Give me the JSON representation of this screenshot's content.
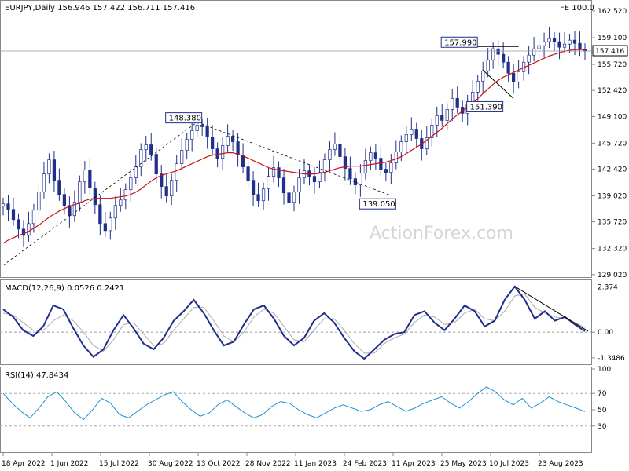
{
  "header": {
    "symbol_line": "EURJPY,Daily  156.946 157.422 156.711 157.416",
    "fe_label": "FE 100.0",
    "watermark": "ActionForex.com"
  },
  "chart_data": [
    {
      "type": "candlestick",
      "panel": "price",
      "title": "EURJPY,Daily",
      "ohlc_last": {
        "open": 156.946,
        "high": 157.422,
        "low": 156.711,
        "close": 157.416
      },
      "y_ticks": [
        162.52,
        159.1,
        155.72,
        152.42,
        149.1,
        145.72,
        142.42,
        139.02,
        135.72,
        132.32,
        129.02
      ],
      "y_tick_labels": [
        "162.520",
        "159.100",
        "155.720",
        "152.420",
        "149.100",
        "145.720",
        "142.420",
        "139.020",
        "135.720",
        "132.320",
        "129.020"
      ],
      "ylim": [
        129.0,
        163.5
      ],
      "current_price_label": "157.416",
      "current_price": 157.416,
      "x_tick_labels": [
        "18 Apr 2022",
        "1 Jun 2022",
        "15 Jul 2022",
        "30 Aug 2022",
        "13 Oct 2022",
        "28 Nov 2022",
        "11 Jan 2023",
        "24 Feb 2023",
        "11 Apr 2023",
        "25 May 2023",
        "10 Jul 2023",
        "23 Aug 2023"
      ],
      "close_series": [
        138.0,
        137.3,
        136.0,
        134.8,
        134.0,
        135.5,
        137.2,
        139.5,
        141.8,
        143.6,
        141.0,
        139.2,
        137.8,
        136.5,
        138.2,
        140.8,
        142.3,
        140.0,
        137.9,
        135.5,
        134.6,
        136.2,
        137.8,
        138.5,
        139.8,
        141.3,
        142.7,
        144.9,
        145.5,
        144.3,
        141.8,
        140.2,
        139.0,
        141.0,
        143.1,
        144.8,
        146.2,
        147.3,
        148.0,
        147.8,
        146.5,
        145.0,
        143.8,
        145.4,
        146.6,
        145.9,
        144.2,
        142.7,
        141.0,
        139.2,
        138.4,
        139.9,
        141.5,
        142.6,
        141.3,
        139.4,
        138.2,
        139.5,
        141.3,
        142.2,
        141.5,
        140.8,
        142.0,
        143.6,
        144.9,
        145.6,
        144.0,
        142.5,
        141.2,
        140.4,
        141.9,
        143.5,
        144.5,
        143.8,
        142.4,
        142.0,
        143.2,
        144.6,
        145.9,
        146.8,
        147.5,
        146.3,
        145.0,
        146.4,
        148.0,
        149.2,
        148.6,
        150.0,
        151.4,
        150.3,
        149.5,
        150.7,
        152.2,
        153.6,
        154.9,
        156.3,
        157.7,
        157.0,
        156.0,
        154.6,
        153.5,
        154.8,
        156.0,
        156.9,
        157.7,
        158.1,
        158.6,
        159.0,
        158.6,
        157.9,
        158.3,
        158.8,
        158.4,
        157.6,
        157.416
      ],
      "ma_series": [
        133.0,
        133.4,
        133.7,
        134.0,
        134.2,
        134.5,
        134.9,
        135.3,
        135.8,
        136.3,
        136.7,
        137.1,
        137.4,
        137.7,
        137.9,
        138.1,
        138.4,
        138.6,
        138.7,
        138.7,
        138.7,
        138.7,
        138.8,
        138.9,
        139.0,
        139.2,
        139.5,
        139.9,
        140.4,
        140.9,
        141.3,
        141.6,
        141.8,
        142.0,
        142.2,
        142.5,
        142.8,
        143.1,
        143.4,
        143.7,
        144.0,
        144.2,
        144.3,
        144.4,
        144.5,
        144.5,
        144.3,
        144.1,
        143.8,
        143.5,
        143.2,
        142.9,
        142.6,
        142.4,
        142.3,
        142.2,
        142.1,
        142.0,
        141.9,
        141.8,
        141.8,
        141.8,
        141.9,
        142.0,
        142.2,
        142.4,
        142.6,
        142.7,
        142.8,
        142.8,
        142.8,
        142.9,
        143.0,
        143.1,
        143.2,
        143.3,
        143.5,
        143.7,
        144.0,
        144.4,
        144.8,
        145.2,
        145.6,
        146.1,
        146.6,
        147.1,
        147.6,
        148.2,
        148.8,
        149.3,
        149.8,
        150.3,
        150.8,
        151.4,
        152.0,
        152.6,
        153.2,
        153.7,
        154.1,
        154.4,
        154.7,
        155.0,
        155.3,
        155.6,
        155.9,
        156.2,
        156.5,
        156.8,
        157.0,
        157.2,
        157.4,
        157.5,
        157.6,
        157.6,
        157.6
      ],
      "annotations": [
        {
          "label": "148.380",
          "value": 148.38
        },
        {
          "label": "139.050",
          "value": 139.05
        },
        {
          "label": "157.990",
          "value": 157.99
        },
        {
          "label": "151.390",
          "value": 151.39
        }
      ]
    },
    {
      "type": "line",
      "panel": "macd",
      "title": "MACD(12,26,9) 0.0526 0.2421",
      "y_tick_labels": [
        "2.374",
        "0.00",
        "-1.3486"
      ],
      "ylim": [
        -1.6,
        2.6
      ],
      "macd_series": [
        1.2,
        0.8,
        0.1,
        -0.2,
        0.3,
        1.4,
        1.2,
        0.2,
        -0.7,
        -1.3,
        -0.9,
        0.1,
        0.9,
        0.2,
        -0.6,
        -0.9,
        -0.3,
        0.6,
        1.1,
        1.7,
        1.0,
        0.1,
        -0.7,
        -0.5,
        0.4,
        1.2,
        1.4,
        0.7,
        -0.2,
        -0.7,
        -0.3,
        0.6,
        1.0,
        0.5,
        -0.3,
        -1.0,
        -1.4,
        -0.9,
        -0.4,
        -0.1,
        0.0,
        0.9,
        1.1,
        0.5,
        0.1,
        0.7,
        1.4,
        1.1,
        0.3,
        0.6,
        1.7,
        2.4,
        1.7,
        0.7,
        1.1,
        0.6,
        0.8,
        0.4,
        0.05
      ],
      "signal_series": [
        1.0,
        0.9,
        0.5,
        0.1,
        0.1,
        0.6,
        0.9,
        0.6,
        0.0,
        -0.7,
        -1.0,
        -0.4,
        0.4,
        0.5,
        -0.1,
        -0.7,
        -0.6,
        0.1,
        0.7,
        1.3,
        1.3,
        0.6,
        -0.2,
        -0.5,
        0.0,
        0.8,
        1.2,
        1.0,
        0.3,
        -0.4,
        -0.5,
        0.1,
        0.7,
        0.7,
        0.1,
        -0.6,
        -1.1,
        -1.1,
        -0.6,
        -0.3,
        -0.1,
        0.5,
        0.9,
        0.8,
        0.4,
        0.5,
        1.0,
        1.2,
        0.7,
        0.6,
        1.1,
        1.9,
        2.0,
        1.3,
        1.0,
        0.8,
        0.7,
        0.5,
        0.24
      ]
    },
    {
      "type": "line",
      "panel": "rsi",
      "title": "RSI(14) 47.8434",
      "y_tick_labels": [
        "100",
        "70",
        "50",
        "30"
      ],
      "ylim": [
        0,
        100
      ],
      "rsi_series": [
        70,
        58,
        48,
        40,
        52,
        66,
        72,
        60,
        46,
        38,
        50,
        64,
        58,
        44,
        40,
        48,
        56,
        62,
        68,
        72,
        60,
        50,
        42,
        46,
        56,
        62,
        54,
        46,
        40,
        44,
        54,
        60,
        58,
        50,
        44,
        40,
        46,
        52,
        56,
        52,
        48,
        50,
        56,
        60,
        54,
        48,
        52,
        58,
        62,
        66,
        58,
        52,
        60,
        70,
        78,
        72,
        62,
        56,
        64,
        52,
        58,
        66,
        60,
        56,
        52,
        47.8
      ]
    }
  ]
}
